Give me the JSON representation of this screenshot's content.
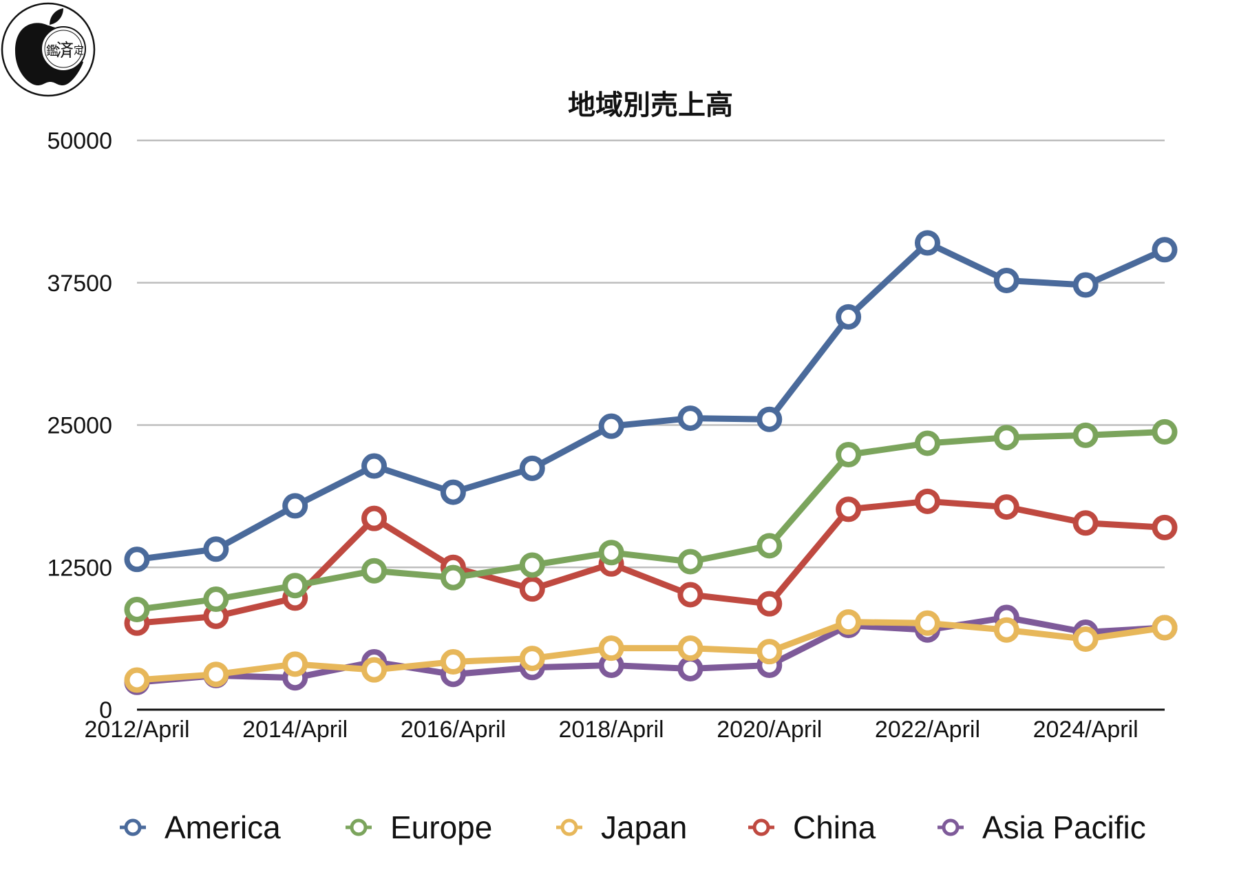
{
  "logo": {
    "chars": [
      "鑑",
      "済",
      "定"
    ],
    "colors": {
      "apple": "#111111",
      "ring": "#111111",
      "badge": "#ffffff"
    }
  },
  "chart_data": {
    "type": "line",
    "title": "地域別売上高",
    "xlabel": "",
    "ylabel": "",
    "ylim": [
      0,
      50000
    ],
    "yticks": [
      "0",
      "12500",
      "25000",
      "37500",
      "50000"
    ],
    "x": [
      "2012/April",
      "2013/April",
      "2014/April",
      "2015/April",
      "2016/April",
      "2017/April",
      "2018/April",
      "2019/April",
      "2020/April",
      "2021/April",
      "2022/April",
      "2023/April",
      "2024/April",
      "2025/April"
    ],
    "xtick_labels": [
      "2012/April",
      "2014/April",
      "2016/April",
      "2018/April",
      "2020/April",
      "2022/April",
      "2024/April"
    ],
    "grid": "horizontal",
    "legend_position": "bottom",
    "series": [
      {
        "name": "America",
        "color": "#4a6a9b",
        "values": [
          13200,
          14100,
          17900,
          21400,
          19100,
          21200,
          24900,
          25600,
          25500,
          34500,
          41000,
          37700,
          37300,
          40400
        ]
      },
      {
        "name": "Europe",
        "color": "#7ba45c",
        "values": [
          8800,
          9700,
          10900,
          12200,
          11600,
          12700,
          13800,
          13000,
          14400,
          22400,
          23400,
          23900,
          24100,
          24400
        ]
      },
      {
        "name": "Japan",
        "color": "#e7b75a",
        "values": [
          2600,
          3100,
          4000,
          3500,
          4200,
          4500,
          5400,
          5400,
          5100,
          7700,
          7600,
          7000,
          6200,
          7200
        ]
      },
      {
        "name": "China",
        "color": "#bf4940",
        "values": [
          7600,
          8200,
          9800,
          16800,
          12500,
          10600,
          12800,
          10100,
          9300,
          17600,
          18300,
          17800,
          16400,
          16000
        ]
      },
      {
        "name": "Asia Pacific",
        "color": "#7e5a99",
        "values": [
          2400,
          3000,
          2800,
          4200,
          3100,
          3700,
          3900,
          3600,
          3900,
          7400,
          7000,
          8100,
          6800,
          7200
        ]
      }
    ],
    "draw_order": [
      "Asia Pacific",
      "China",
      "Europe",
      "America",
      "Japan"
    ]
  }
}
